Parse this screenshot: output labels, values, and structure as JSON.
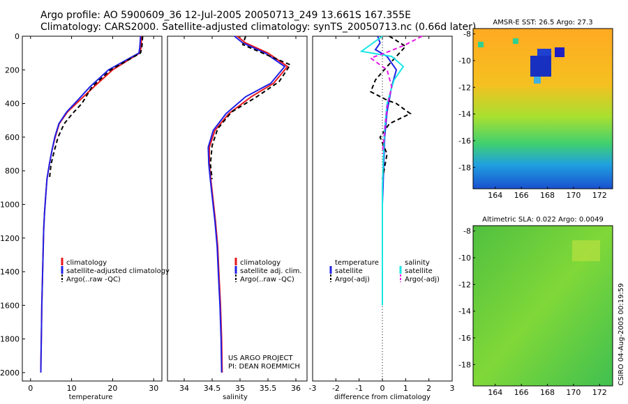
{
  "header": {
    "line1": "Argo profile: AO 5900609_36 12-Jul-2005 20050713_249 13.661S 167.355E",
    "line2": "Climatology: CARS2000. Satellite-adjusted climatology: synTS_20050713.nc (0.66d later)"
  },
  "side_label": "CSIRO 04-Aug-2005 00:19:59",
  "colors": {
    "red": "#e8161b",
    "blue": "#1f1fe6",
    "black": "#000000",
    "cyan": "#19e6e6",
    "magenta": "#e619e6"
  },
  "chart_data": [
    {
      "type": "line",
      "xlabel": "temperature",
      "ylabel": "",
      "xlim": [
        -2,
        32
      ],
      "ylim": [
        2050,
        0
      ],
      "xticks": [
        "0",
        "10",
        "20",
        "30"
      ],
      "yticks": [
        "0",
        "200",
        "400",
        "600",
        "800",
        "1000",
        "1200",
        "1400",
        "1600",
        "1800",
        "2000"
      ],
      "legend": {
        "position": "lower-right",
        "entries": [
          "climatology",
          "satellite-adjusted climatology",
          "Argo(..raw -QC)"
        ]
      },
      "series": [
        {
          "name": "climatology",
          "color": "red",
          "dash": false,
          "x": [
            27.0,
            27.0,
            26.9,
            26.6,
            20,
            15.5,
            12,
            9,
            7,
            6,
            5.2,
            4.6,
            4.0,
            3.7,
            3.4,
            3.2,
            3.1,
            3.0,
            2.9,
            2.75,
            2.65,
            2.55,
            2.5
          ],
          "y": [
            0,
            40,
            70,
            100,
            200,
            300,
            380,
            450,
            520,
            600,
            680,
            760,
            850,
            950,
            1050,
            1150,
            1250,
            1350,
            1450,
            1600,
            1750,
            1900,
            2000
          ]
        },
        {
          "name": "satellite-adjusted climatology",
          "color": "blue",
          "dash": false,
          "x": [
            26.8,
            26.7,
            26.6,
            26.4,
            19,
            14.5,
            11.5,
            8.8,
            6.9,
            5.9,
            5.2,
            4.6,
            4.0,
            3.7,
            3.4,
            3.2,
            3.1,
            3.0,
            2.9,
            2.75,
            2.65,
            2.55,
            2.5
          ],
          "y": [
            0,
            40,
            70,
            100,
            200,
            300,
            380,
            450,
            520,
            600,
            680,
            760,
            850,
            950,
            1050,
            1150,
            1250,
            1350,
            1450,
            1600,
            1750,
            1900,
            2000
          ]
        },
        {
          "name": "Argo(..raw -QC)",
          "color": "black",
          "dash": true,
          "x": [
            27.3,
            27.2,
            27.1,
            26.8,
            19.5,
            15,
            12.5,
            10.2,
            8.2,
            6.7,
            5.8,
            5.0,
            4.6
          ],
          "y": [
            0,
            40,
            70,
            100,
            200,
            300,
            400,
            460,
            520,
            600,
            680,
            760,
            850
          ]
        }
      ],
      "annotations": []
    },
    {
      "type": "line",
      "xlabel": "salinity",
      "ylabel": "",
      "xlim": [
        33.7,
        36.2
      ],
      "ylim": [
        2050,
        0
      ],
      "xticks": [
        "34",
        "34.5",
        "35",
        "35.5",
        "36"
      ],
      "yticks": [],
      "legend": {
        "position": "lower-right",
        "entries": [
          "climatology",
          "satellite adj. clim.",
          "Argo(..raw -QC)"
        ]
      },
      "series": [
        {
          "name": "climatology",
          "color": "red",
          "dash": false,
          "x": [
            34.95,
            35.1,
            35.5,
            35.85,
            35.6,
            35.2,
            34.8,
            34.55,
            34.45,
            34.45,
            34.48,
            34.52,
            34.56,
            34.6,
            34.62,
            34.65,
            34.67,
            34.68
          ],
          "y": [
            0,
            40,
            100,
            180,
            280,
            360,
            460,
            560,
            660,
            760,
            860,
            980,
            1100,
            1250,
            1400,
            1600,
            1800,
            2000
          ]
        },
        {
          "name": "satellite adj. clim.",
          "color": "blue",
          "dash": false,
          "x": [
            34.9,
            35.05,
            35.45,
            35.8,
            35.55,
            35.1,
            34.75,
            34.52,
            34.43,
            34.44,
            34.47,
            34.51,
            34.55,
            34.59,
            34.61,
            34.64,
            34.66,
            34.67
          ],
          "y": [
            0,
            40,
            100,
            180,
            280,
            360,
            460,
            560,
            660,
            760,
            860,
            980,
            1100,
            1250,
            1400,
            1600,
            1800,
            2000
          ]
        },
        {
          "name": "Argo(..raw -QC)",
          "color": "black",
          "dash": true,
          "x": [
            35.1,
            35.05,
            35.4,
            35.9,
            35.7,
            35.3,
            34.85,
            34.6,
            34.5,
            34.47,
            34.5
          ],
          "y": [
            0,
            50,
            100,
            170,
            270,
            360,
            450,
            550,
            650,
            760,
            850
          ]
        }
      ],
      "annotations": [
        "US ARGO PROJECT",
        "PI: DEAN ROEMMICH"
      ]
    },
    {
      "type": "line",
      "xlabel": "difference from climatology",
      "ylabel": "",
      "xlim": [
        -3,
        3
      ],
      "ylim": [
        2050,
        0
      ],
      "xticks": [
        "-3",
        "-2",
        "-1",
        "0",
        "1",
        "2",
        "3"
      ],
      "yticks": [],
      "legend": {
        "position": "lower-left",
        "entries": [
          "temperature",
          "satellite",
          "Argo(-adj)",
          "salinity",
          "satellite",
          "Argo(-adj)"
        ]
      },
      "series": [
        {
          "name": "temperature satellite",
          "color": "blue",
          "dash": false,
          "x": [
            -0.2,
            -0.1,
            -0.3,
            0.2,
            0.6,
            0.4,
            0.2,
            0.1,
            0.05,
            0.0,
            0.0,
            0.0
          ],
          "y": [
            0,
            40,
            80,
            120,
            200,
            300,
            450,
            600,
            800,
            1000,
            1200,
            1600
          ]
        },
        {
          "name": "temperature Argo(-adj)",
          "color": "black",
          "dash": true,
          "x": [
            0.3,
            1.0,
            0.6,
            0.2,
            -0.3,
            -0.5,
            0.2,
            0.6,
            1.2,
            0.3,
            -0.1,
            0.2,
            0.0
          ],
          "y": [
            0,
            60,
            120,
            180,
            260,
            330,
            380,
            400,
            460,
            520,
            600,
            700,
            850
          ]
        },
        {
          "name": "salinity satellite",
          "color": "cyan",
          "dash": false,
          "x": [
            0.0,
            -0.5,
            -0.9,
            0.4,
            0.9,
            0.5,
            0.2,
            0.1,
            0.05,
            0.0,
            0.0,
            0.0
          ],
          "y": [
            0,
            50,
            90,
            120,
            180,
            260,
            400,
            550,
            700,
            900,
            1200,
            1600
          ]
        },
        {
          "name": "salinity Argo(-adj)",
          "color": "magenta",
          "dash": true,
          "x": [
            1.7,
            1.0,
            0.3,
            -0.5,
            0.2,
            0.4,
            0.2,
            0.1,
            0.0
          ],
          "y": [
            0,
            50,
            90,
            130,
            200,
            300,
            420,
            560,
            700
          ]
        }
      ],
      "annotations": []
    },
    {
      "type": "heatmap",
      "title": "AMSR-E SST: 26.5 Argo: 27.3",
      "xlabel": "",
      "ylabel": "",
      "xlim": [
        162.3,
        173
      ],
      "ylim": [
        -19.6,
        -7.6
      ],
      "xticks": [
        "164",
        "166",
        "168",
        "170",
        "172"
      ],
      "yticks": [
        "-8",
        "-10",
        "-12",
        "-14",
        "-16",
        "-18"
      ],
      "colorscale": "warm-top to cold-bottom"
    },
    {
      "type": "heatmap",
      "title": "Altimetric SLA: 0.022 Argo: 0.0049",
      "xlabel": "",
      "ylabel": "",
      "xlim": [
        162.3,
        173
      ],
      "ylim": [
        -19.6,
        -7.6
      ],
      "xticks": [
        "164",
        "166",
        "168",
        "170",
        "172"
      ],
      "yticks": [
        "-8",
        "-10",
        "-12",
        "-14",
        "-16",
        "-18"
      ],
      "colorscale": "green field"
    }
  ]
}
